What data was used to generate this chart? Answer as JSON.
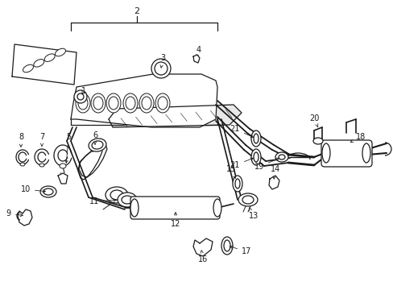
{
  "bg_color": "#ffffff",
  "line_color": "#1a1a1a",
  "fig_width": 4.89,
  "fig_height": 3.6,
  "dpi": 100,
  "label_fontsize": 7.0
}
